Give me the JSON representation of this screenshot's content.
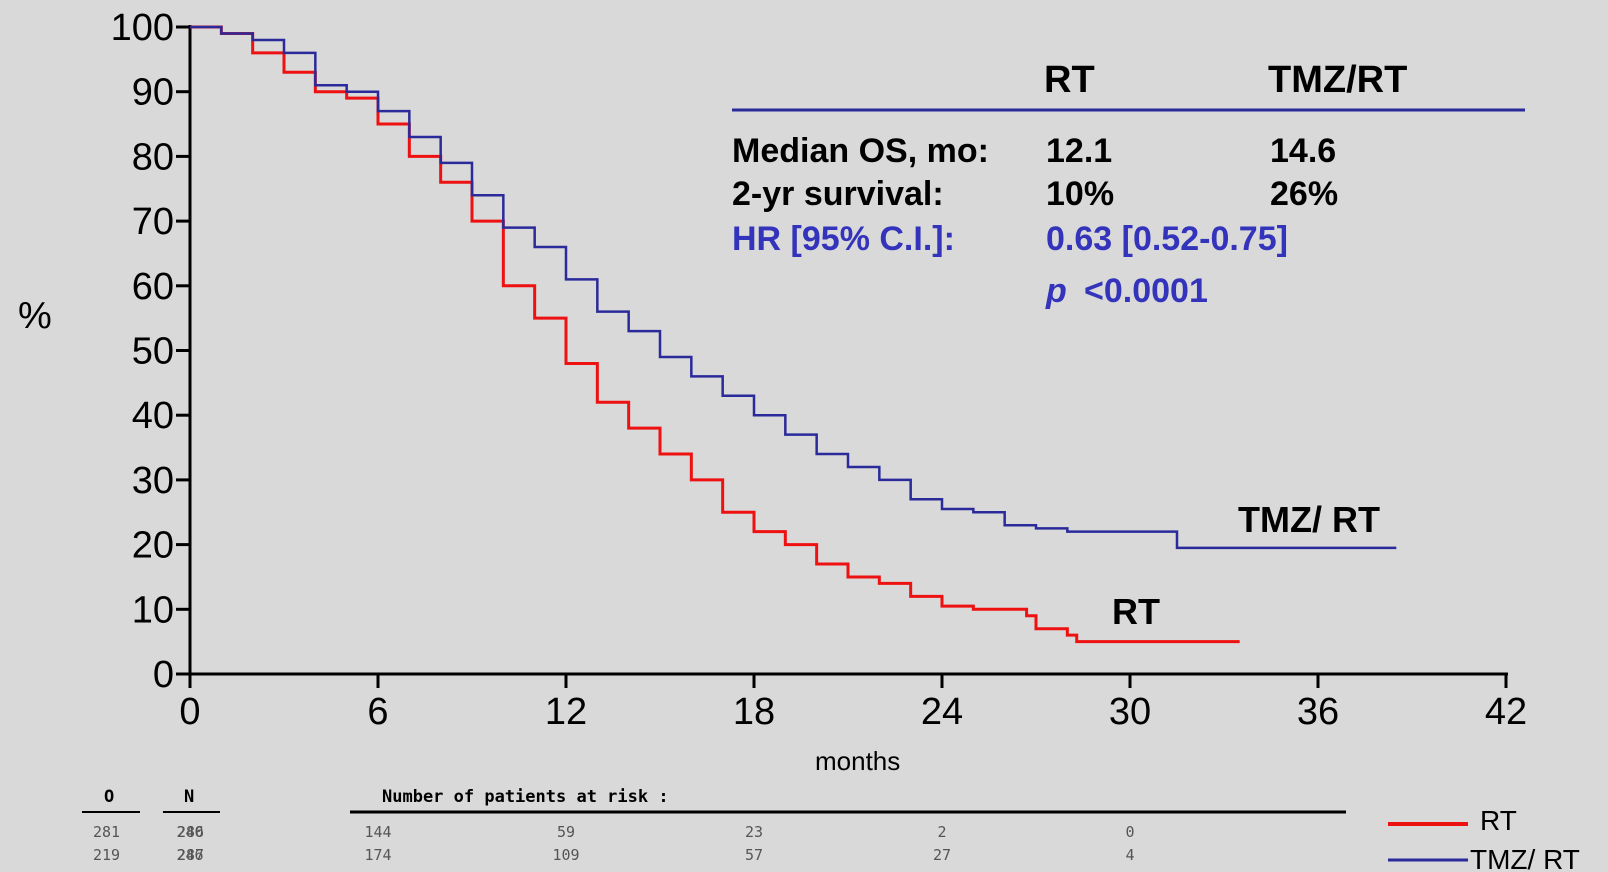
{
  "chart_data": {
    "type": "line",
    "title": "",
    "xlabel": "months",
    "ylabel": "%",
    "xlim": [
      0,
      42
    ],
    "ylim": [
      0,
      100
    ],
    "x_ticks": [
      "0",
      "6",
      "12",
      "18",
      "24",
      "30",
      "36",
      "42"
    ],
    "y_ticks": [
      "0",
      "10",
      "20",
      "30",
      "40",
      "50",
      "60",
      "70",
      "80",
      "90",
      "100"
    ],
    "grid": false,
    "series": [
      {
        "name": "RT",
        "color": "#ee1111",
        "points": [
          [
            0,
            100
          ],
          [
            1,
            99
          ],
          [
            2,
            96
          ],
          [
            3,
            93
          ],
          [
            4,
            90
          ],
          [
            5,
            89
          ],
          [
            6,
            85
          ],
          [
            7,
            80
          ],
          [
            8,
            76
          ],
          [
            9,
            70
          ],
          [
            10,
            60
          ],
          [
            11,
            55
          ],
          [
            12,
            48
          ],
          [
            13,
            42
          ],
          [
            14,
            38
          ],
          [
            15,
            34
          ],
          [
            16,
            30
          ],
          [
            17,
            25
          ],
          [
            18,
            22
          ],
          [
            19,
            20
          ],
          [
            20,
            17
          ],
          [
            21,
            15
          ],
          [
            22,
            14
          ],
          [
            23,
            12
          ],
          [
            24,
            10.5
          ],
          [
            25,
            10
          ],
          [
            26,
            10
          ],
          [
            26.7,
            9
          ],
          [
            27,
            7
          ],
          [
            28,
            6
          ],
          [
            28.3,
            5
          ],
          [
            30,
            5
          ],
          [
            33.5,
            5
          ]
        ]
      },
      {
        "name": "TMZ/RT",
        "color": "#2a2a9a",
        "points": [
          [
            0,
            100
          ],
          [
            1,
            99
          ],
          [
            2,
            98
          ],
          [
            3,
            96
          ],
          [
            4,
            91
          ],
          [
            5,
            90
          ],
          [
            6,
            87
          ],
          [
            7,
            83
          ],
          [
            8,
            79
          ],
          [
            9,
            74
          ],
          [
            10,
            69
          ],
          [
            11,
            66
          ],
          [
            12,
            61
          ],
          [
            13,
            56
          ],
          [
            14,
            53
          ],
          [
            15,
            49
          ],
          [
            16,
            46
          ],
          [
            17,
            43
          ],
          [
            18,
            40
          ],
          [
            19,
            37
          ],
          [
            20,
            34
          ],
          [
            21,
            32
          ],
          [
            22,
            30
          ],
          [
            23,
            27
          ],
          [
            24,
            25.5
          ],
          [
            25,
            25
          ],
          [
            26,
            23
          ],
          [
            27,
            22.5
          ],
          [
            28,
            22
          ],
          [
            31,
            22
          ],
          [
            31.5,
            19.5
          ],
          [
            34,
            19.5
          ],
          [
            38.5,
            19.5
          ]
        ]
      }
    ]
  },
  "stats_table": {
    "columns": [
      "RT",
      "TMZ/RT"
    ],
    "rows": [
      {
        "label": "Median OS, mo:",
        "rt": "12.1",
        "tmz": "14.6"
      },
      {
        "label": "2-yr survival:",
        "rt": "10%",
        "tmz": "26%"
      }
    ],
    "hr_label": "HR [95% C.I.]:",
    "hr_value": "0.63 [0.52-0.75]",
    "p_symbol": "p",
    "p_value": "<0.0001"
  },
  "curve_labels": {
    "rt": "RT",
    "tmz": "TMZ/ RT"
  },
  "risk_table": {
    "o_header": "O",
    "n_header": "N",
    "title": "Number of patients at risk :",
    "rows": [
      {
        "o": "281",
        "n": "286",
        "counts": [
          "240",
          "144",
          "59",
          "23",
          "2",
          "0"
        ]
      },
      {
        "o": "219",
        "n": "287",
        "counts": [
          "246",
          "174",
          "109",
          "57",
          "27",
          "4"
        ]
      }
    ]
  },
  "legend": [
    {
      "label": "RT",
      "color": "#ee1111"
    },
    {
      "label": "TMZ/ RT",
      "color": "#2a2a9a"
    }
  ]
}
